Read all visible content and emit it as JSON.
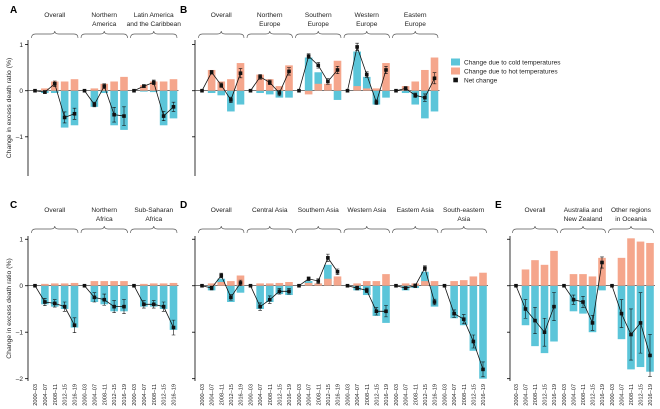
{
  "colors": {
    "cold": "#5bc5d9",
    "hot": "#f5a68c",
    "net": "#111111"
  },
  "chart_data": [
    {
      "panel": "A",
      "type": "bar",
      "ylabel": "Change in excess death ratio (%)",
      "ylim": [
        -1.85,
        1.1
      ],
      "yticks": [
        1,
        0,
        -1
      ],
      "ytick_labels": [
        "1",
        "0",
        "–1"
      ],
      "groups": [
        {
          "label": [
            "Overall"
          ],
          "cold": [
            0,
            -0.05,
            -0.05,
            -0.8,
            -0.75
          ],
          "hot": [
            0,
            0.05,
            0.2,
            0.2,
            0.25
          ],
          "net": [
            0,
            -0.03,
            0.15,
            -0.58,
            -0.5
          ],
          "err": [
            0,
            0.03,
            0.06,
            0.12,
            0.12
          ]
        },
        {
          "label": [
            "Northern",
            "America"
          ],
          "cold": [
            0,
            -0.35,
            -0.05,
            -0.75,
            -0.85
          ],
          "hot": [
            0,
            0.05,
            0.15,
            0.2,
            0.3
          ],
          "net": [
            0,
            -0.3,
            0.1,
            -0.52,
            -0.55
          ],
          "err": [
            0,
            0.05,
            0.05,
            0.16,
            0.2
          ]
        },
        {
          "label": [
            "Latin America",
            "and the Caribbean"
          ],
          "cold": [
            0,
            -0.02,
            -0.03,
            -0.75,
            -0.6
          ],
          "hot": [
            0,
            0.12,
            0.2,
            0.2,
            0.25
          ],
          "net": [
            0,
            0.1,
            0.18,
            -0.55,
            -0.35
          ],
          "err": [
            0,
            0.03,
            0.05,
            0.1,
            0.1
          ]
        }
      ]
    },
    {
      "panel": "B",
      "type": "bar",
      "ylim": [
        -1.85,
        1.1
      ],
      "yticks": [
        1,
        0,
        -1
      ],
      "legend": [
        "Change due to cold temperatures",
        "Change due to hot temperatures",
        "Net change"
      ],
      "groups": [
        {
          "label": [
            "Overall"
          ],
          "cold": [
            0,
            -0.05,
            -0.1,
            -0.45,
            -0.3
          ],
          "hot": [
            0,
            0.45,
            0.2,
            0.25,
            0.6
          ],
          "net": [
            0,
            0.4,
            0.12,
            -0.2,
            0.38
          ],
          "err": [
            0,
            0.04,
            0.05,
            0.06,
            0.1
          ]
        },
        {
          "label": [
            "Northern",
            "Europe"
          ],
          "cold": [
            0,
            -0.05,
            -0.08,
            -0.15,
            -0.15
          ],
          "hot": [
            0,
            0.35,
            0.25,
            0.1,
            0.55
          ],
          "net": [
            0,
            0.3,
            0.18,
            -0.05,
            0.42
          ],
          "err": [
            0,
            0.05,
            0.05,
            0.06,
            0.08
          ]
        },
        {
          "label": [
            "Southern",
            "Europe"
          ],
          "cold": [
            0,
            0.72,
            0.4,
            0.05,
            -0.2
          ],
          "hot": [
            0,
            -0.08,
            0.15,
            0.15,
            0.65
          ],
          "net": [
            0,
            0.75,
            0.55,
            0.2,
            0.45
          ],
          "err": [
            0,
            0.05,
            0.06,
            0.06,
            0.08
          ]
        },
        {
          "label": [
            "Western",
            "Europe"
          ],
          "cold": [
            0,
            0.85,
            0.3,
            -0.3,
            -0.15
          ],
          "hot": [
            0,
            0.1,
            0.05,
            0.05,
            0.6
          ],
          "net": [
            0,
            0.95,
            0.35,
            -0.25,
            0.45
          ],
          "err": [
            0,
            0.08,
            0.06,
            0.05,
            0.08
          ]
        },
        {
          "label": [
            "Eastern",
            "Europe"
          ],
          "cold": [
            0,
            -0.05,
            -0.3,
            -0.6,
            -0.45
          ],
          "hot": [
            0,
            0.1,
            0.2,
            0.45,
            0.72
          ],
          "net": [
            0,
            0.05,
            -0.1,
            -0.15,
            0.27
          ],
          "err": [
            0,
            0.04,
            0.05,
            0.08,
            0.12
          ]
        }
      ]
    },
    {
      "panel": "C",
      "type": "bar",
      "ylabel": "Change in excess death ratio (%)",
      "ylim": [
        -2.05,
        1.07
      ],
      "yticks": [
        1,
        0,
        -1,
        -2
      ],
      "ytick_labels": [
        "1",
        "0",
        "–1",
        "–2"
      ],
      "x_tick_labels": [
        "2000–03",
        "2004–07",
        "2008–11",
        "2012–15",
        "2016–19"
      ],
      "groups": [
        {
          "label": [
            "Overall"
          ],
          "cold": [
            0,
            -0.4,
            -0.45,
            -0.5,
            -0.9
          ],
          "hot": [
            0,
            0.04,
            0.05,
            0.05,
            0.06
          ],
          "net": [
            0,
            -0.35,
            -0.38,
            -0.45,
            -0.85
          ],
          "err": [
            0,
            0.08,
            0.08,
            0.1,
            0.16
          ]
        },
        {
          "label": [
            "Northern",
            "Africa"
          ],
          "cold": [
            0,
            -0.35,
            -0.4,
            -0.55,
            -0.55
          ],
          "hot": [
            0,
            0.1,
            0.1,
            0.1,
            0.1
          ],
          "net": [
            0,
            -0.25,
            -0.3,
            -0.45,
            -0.45
          ],
          "err": [
            0,
            0.1,
            0.12,
            0.13,
            0.15
          ]
        },
        {
          "label": [
            "Sub-Saharan",
            "Africa"
          ],
          "cold": [
            0,
            -0.45,
            -0.45,
            -0.5,
            -0.95
          ],
          "hot": [
            0,
            0.04,
            0.05,
            0.05,
            0.06
          ],
          "net": [
            0,
            -0.4,
            -0.4,
            -0.45,
            -0.9
          ],
          "err": [
            0,
            0.08,
            0.08,
            0.1,
            0.16
          ]
        }
      ]
    },
    {
      "panel": "D",
      "type": "bar",
      "ylim": [
        -2.05,
        1.07
      ],
      "yticks": [
        1,
        0,
        -1,
        -2
      ],
      "x_tick_labels": [
        "2000–03",
        "2004–07",
        "2008–11",
        "2012–15",
        "2016–19"
      ],
      "groups": [
        {
          "label": [
            "Overall"
          ],
          "cold": [
            0,
            -0.1,
            0.15,
            -0.35,
            -0.15
          ],
          "hot": [
            0,
            0.05,
            0.08,
            0.1,
            0.22
          ],
          "net": [
            0,
            -0.05,
            0.22,
            -0.25,
            0.06
          ],
          "err": [
            0,
            0.04,
            0.05,
            0.06,
            0.06
          ]
        },
        {
          "label": [
            "Central Asia"
          ],
          "cold": [
            0,
            -0.5,
            -0.35,
            -0.18,
            -0.2
          ],
          "hot": [
            0,
            0.05,
            0.05,
            0.06,
            0.08
          ],
          "net": [
            0,
            -0.45,
            -0.3,
            -0.12,
            -0.12
          ],
          "err": [
            0,
            0.08,
            0.08,
            0.06,
            0.06
          ]
        },
        {
          "label": [
            "Southern Asia"
          ],
          "cold": [
            0,
            0.1,
            0.05,
            0.45,
            0.1
          ],
          "hot": [
            0,
            0.06,
            0.05,
            0.15,
            0.2
          ],
          "net": [
            0,
            0.15,
            0.1,
            0.6,
            0.3
          ],
          "err": [
            0,
            0.04,
            0.05,
            0.08,
            0.06
          ]
        },
        {
          "label": [
            "Western Asia"
          ],
          "cold": [
            0,
            -0.1,
            -0.2,
            -0.65,
            -0.8
          ],
          "hot": [
            0,
            0.05,
            0.1,
            0.1,
            0.25
          ],
          "net": [
            0,
            -0.05,
            -0.1,
            -0.55,
            -0.55
          ],
          "err": [
            0,
            0.04,
            0.05,
            0.08,
            0.12
          ]
        },
        {
          "label": [
            "Eastern Asia"
          ],
          "cold": [
            0,
            -0.1,
            -0.05,
            0.3,
            -0.45
          ],
          "hot": [
            0,
            0.05,
            0.05,
            0.1,
            0.1
          ],
          "net": [
            0,
            -0.05,
            0,
            0.38,
            -0.35
          ],
          "err": [
            0,
            0.03,
            0.04,
            0.05,
            0.06
          ]
        },
        {
          "label": [
            "South-eastern",
            "Asia"
          ],
          "cold": [
            0,
            -0.7,
            -0.85,
            -1.4,
            -2.0
          ],
          "hot": [
            0,
            0.1,
            0.12,
            0.2,
            0.28
          ],
          "net": [
            0,
            -0.6,
            -0.72,
            -1.2,
            -1.8
          ],
          "err": [
            0,
            0.08,
            0.1,
            0.14,
            0.16
          ]
        }
      ]
    },
    {
      "panel": "E",
      "type": "bar",
      "ylim": [
        -2.05,
        1.07
      ],
      "yticks": [
        1,
        0,
        -1,
        -2
      ],
      "x_tick_labels": [
        "2000–03",
        "2004–07",
        "2008–11",
        "2012–15",
        "2016–19"
      ],
      "groups": [
        {
          "label": [
            "Overall"
          ],
          "cold": [
            0,
            -0.85,
            -1.3,
            -1.45,
            -1.2
          ],
          "hot": [
            0,
            0.35,
            0.55,
            0.45,
            0.75
          ],
          "net": [
            0,
            -0.5,
            -0.75,
            -1.0,
            -0.45
          ],
          "err": [
            0,
            0.2,
            0.28,
            0.3,
            0.3
          ]
        },
        {
          "label": [
            "Australia and",
            "New Zealand"
          ],
          "cold": [
            0,
            -0.55,
            -0.6,
            -1.0,
            -0.1
          ],
          "hot": [
            0,
            0.25,
            0.25,
            0.2,
            0.6
          ],
          "net": [
            0,
            -0.3,
            -0.35,
            -0.8,
            0.5
          ],
          "err": [
            0,
            0.1,
            0.12,
            0.16,
            0.12
          ]
        },
        {
          "label": [
            "Other regions",
            "in Oceania"
          ],
          "cold": [
            0,
            -1.15,
            -1.8,
            -1.75,
            -1.85
          ],
          "hot": [
            0,
            0.6,
            1.02,
            0.95,
            0.92
          ],
          "net": [
            0,
            -0.6,
            -1.05,
            -0.8,
            -1.5
          ],
          "err": [
            0,
            0.3,
            0.55,
            0.65,
            0.45
          ]
        }
      ]
    }
  ]
}
